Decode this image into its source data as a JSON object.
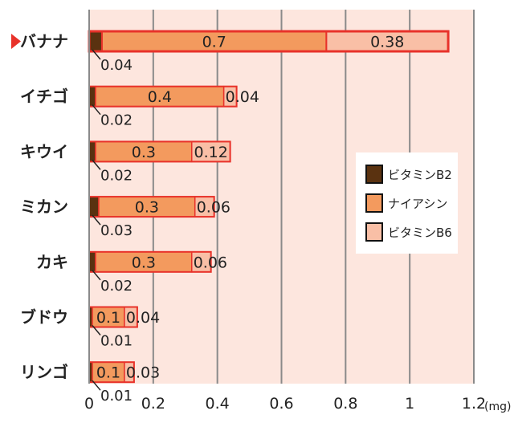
{
  "chart_data": {
    "type": "bar",
    "stacked": true,
    "orientation": "horizontal",
    "categories": [
      "バナナ",
      "イチゴ",
      "キウイ",
      "ミカン",
      "カキ",
      "ブドウ",
      "リンゴ"
    ],
    "highlight_category": "バナナ",
    "series": [
      {
        "name": "ビタミンB2",
        "color": "#5a3210",
        "values": [
          0.04,
          0.02,
          0.02,
          0.03,
          0.02,
          0.01,
          0.01
        ]
      },
      {
        "name": "ナイアシン",
        "color": "#f39a5e",
        "values": [
          0.7,
          0.4,
          0.3,
          0.3,
          0.3,
          0.1,
          0.1
        ]
      },
      {
        "name": "ビタミンB6",
        "color": "#f9bfa6",
        "values": [
          0.38,
          0.04,
          0.12,
          0.06,
          0.06,
          0.04,
          0.03
        ]
      }
    ],
    "bar_labels": [
      [
        "0.04",
        "0.7",
        "0.38"
      ],
      [
        "0.02",
        "0.4",
        "0.04"
      ],
      [
        "0.02",
        "0.3",
        "0.12"
      ],
      [
        "0.03",
        "0.3",
        "0.06"
      ],
      [
        "0.02",
        "0.3",
        "0.06"
      ],
      [
        "0.01",
        "0.1",
        "0.04"
      ],
      [
        "0.01",
        "0.1",
        "0.03"
      ]
    ],
    "x_ticks": [
      {
        "value": 0,
        "label": "0"
      },
      {
        "value": 0.2,
        "label": "0.2"
      },
      {
        "value": 0.4,
        "label": "0.4"
      },
      {
        "value": 0.6,
        "label": "0.6"
      },
      {
        "value": 0.8,
        "label": "0.8"
      },
      {
        "value": 1,
        "label": "1"
      },
      {
        "value": 1.2,
        "label": "1.2"
      }
    ],
    "xlim": [
      0,
      1.2
    ],
    "x_unit": "(mg)",
    "title": "",
    "xlabel": "",
    "ylabel": "",
    "grid": true,
    "legend_position": "right",
    "colors": {
      "plot_background": "#fde6de",
      "grid": "#8a8a8a",
      "bar_border": "#e8322a",
      "highlight_marker": "#e8322a",
      "text": "#222222"
    }
  }
}
